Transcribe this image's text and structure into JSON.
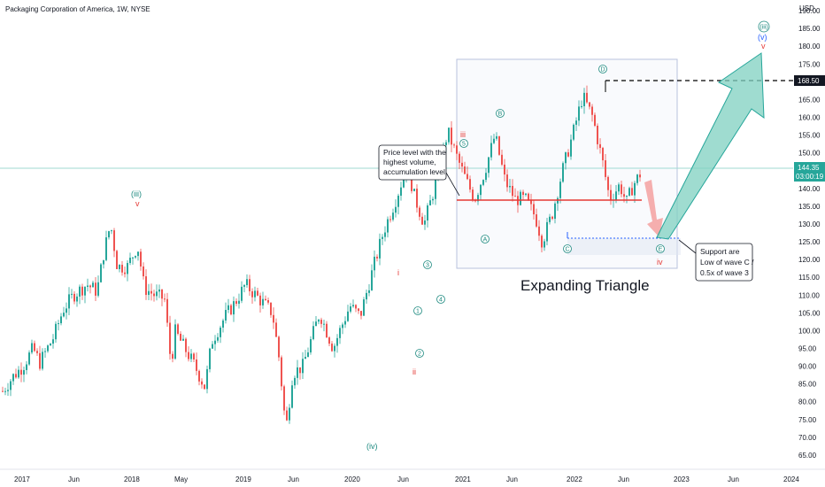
{
  "header": {
    "title": "Packaging Corporation of America, 1W, NYSE"
  },
  "price_axis": {
    "currency": "USD",
    "current_price": "144.35",
    "countdown": "03:00:19",
    "target_price": "168.50"
  },
  "annotations": {
    "callout_volume": [
      "Price level with the",
      "highest volume,",
      "accumulation level"
    ],
    "callout_support": [
      "Support are",
      "Low of wave C /",
      "0.5x of wave 3"
    ],
    "pattern_label": "Expanding Triangle"
  },
  "colors": {
    "up": "#26a69a",
    "down": "#ef5350",
    "teal_label": "#1e8a80",
    "red_label": "#e53935",
    "blue_label": "#2962ff"
  },
  "chart_data": {
    "type": "candlestick",
    "title": "Packaging Corporation of America, 1W, NYSE",
    "ylabel": "USD",
    "ylim": [
      61,
      193
    ],
    "x_tick_labels": [
      "2017",
      "Jun",
      "2018",
      "May",
      "2019",
      "Jun",
      "2020",
      "Jun",
      "2021",
      "Jun",
      "2022",
      "Jun",
      "2023",
      "Jun",
      "2024"
    ],
    "y_ticks": [
      65,
      70,
      75,
      80,
      85,
      90,
      95,
      100,
      105,
      110,
      115,
      120,
      125,
      130,
      135,
      140,
      145,
      150,
      155,
      160,
      165,
      170,
      175,
      180,
      185,
      190
    ],
    "key_levels": [
      {
        "name": "accumulation level",
        "value": 135.5
      },
      {
        "name": "current price",
        "value": 144.35
      },
      {
        "name": "target",
        "value": 168.5
      },
      {
        "name": "support",
        "value": 124.8
      }
    ],
    "price_path": [
      [
        0,
        83
      ],
      [
        0.3,
        87
      ],
      [
        0.6,
        90
      ],
      [
        0.9,
        95
      ],
      [
        1.1,
        91
      ],
      [
        1.5,
        98
      ],
      [
        1.8,
        106
      ],
      [
        2.1,
        110
      ],
      [
        2.5,
        113
      ],
      [
        2.8,
        111
      ],
      [
        3.0,
        122
      ],
      [
        3.2,
        130
      ],
      [
        3.4,
        118
      ],
      [
        3.7,
        118
      ],
      [
        4.0,
        124
      ],
      [
        4.2,
        112
      ],
      [
        4.5,
        110
      ],
      [
        4.8,
        109
      ],
      [
        5.0,
        90
      ],
      [
        5.1,
        100
      ],
      [
        5.4,
        95
      ],
      [
        5.7,
        90
      ],
      [
        6.0,
        84
      ],
      [
        6.2,
        97
      ],
      [
        6.6,
        104
      ],
      [
        6.9,
        108
      ],
      [
        7.2,
        113
      ],
      [
        7.5,
        110
      ],
      [
        8.0,
        105
      ],
      [
        8.2,
        92
      ],
      [
        8.4,
        72
      ],
      [
        8.6,
        88
      ],
      [
        8.9,
        90
      ],
      [
        9.1,
        96
      ],
      [
        9.4,
        105
      ],
      [
        9.8,
        95
      ],
      [
        10.0,
        100
      ],
      [
        10.3,
        107
      ],
      [
        10.6,
        104
      ],
      [
        11.0,
        118
      ],
      [
        11.3,
        128
      ],
      [
        11.7,
        138
      ],
      [
        12.0,
        147
      ],
      [
        12.2,
        138
      ],
      [
        12.5,
        130
      ],
      [
        12.8,
        140
      ],
      [
        13.0,
        148
      ],
      [
        13.2,
        156
      ],
      [
        13.5,
        148
      ],
      [
        13.8,
        141
      ],
      [
        14.0,
        137
      ],
      [
        14.3,
        145
      ],
      [
        14.6,
        155
      ],
      [
        14.9,
        142
      ],
      [
        15.2,
        137
      ],
      [
        15.5,
        137
      ],
      [
        15.8,
        132
      ],
      [
        16.0,
        125
      ],
      [
        16.3,
        133
      ],
      [
        16.6,
        145
      ],
      [
        16.9,
        155
      ],
      [
        17.2,
        166
      ],
      [
        17.5,
        160
      ],
      [
        17.8,
        147
      ],
      [
        18.0,
        137
      ],
      [
        18.3,
        141
      ],
      [
        18.5,
        136
      ],
      [
        18.7,
        141
      ],
      [
        18.9,
        144
      ]
    ],
    "wave_labels": [
      "(iii)",
      "v",
      "(iv)",
      "i",
      "ii",
      "1",
      "2",
      "3",
      "4",
      "5",
      "iii",
      "A",
      "B",
      "C",
      "D",
      "E",
      "iv",
      "(iii)",
      "(v)",
      "v"
    ]
  }
}
